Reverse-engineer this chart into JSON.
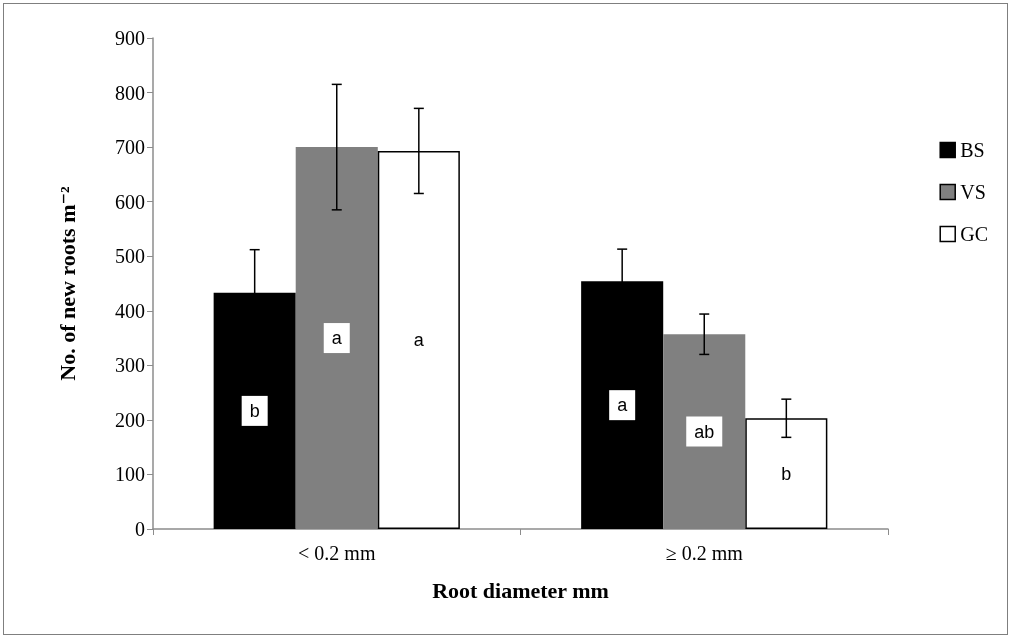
{
  "chart_data": {
    "type": "bar",
    "xlabel": "Root diameter mm",
    "ylabel": "No. of new roots m⁻²",
    "categories": [
      "< 0.2 mm",
      "≥ 0.2 mm"
    ],
    "series": [
      {
        "name": "BS",
        "color": "#000000",
        "values": [
          433,
          454
        ],
        "errors": [
          79,
          59
        ],
        "value_labels": [
          "b",
          "a"
        ]
      },
      {
        "name": "VS",
        "color": "#808080",
        "values": [
          700,
          357
        ],
        "errors": [
          115,
          37
        ],
        "value_labels": [
          "a",
          "ab"
        ]
      },
      {
        "name": "GC",
        "color": "#ffffff",
        "values": [
          693,
          203
        ],
        "errors": [
          78,
          35
        ],
        "value_labels": [
          "a",
          "b"
        ]
      }
    ],
    "ylim": [
      0,
      900
    ],
    "yticks": [
      0,
      100,
      200,
      300,
      400,
      500,
      600,
      700,
      800,
      900
    ],
    "grid": false,
    "legend": "right"
  }
}
